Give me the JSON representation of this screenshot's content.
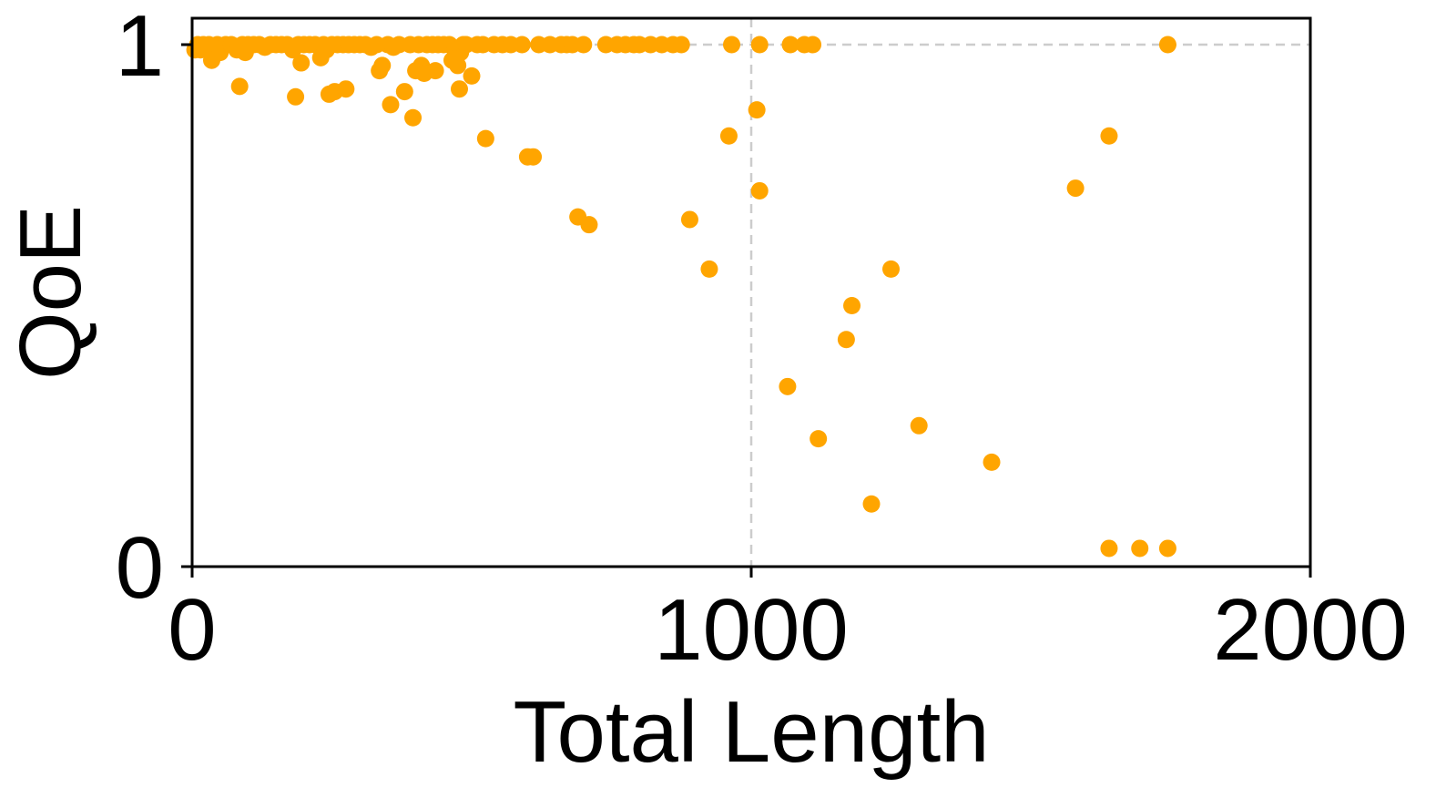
{
  "chart_data": {
    "type": "scatter",
    "title": "",
    "xlabel": "Total Length",
    "ylabel": "QoE",
    "xlim": [
      0,
      2000
    ],
    "ylim": [
      0,
      1.05
    ],
    "xticks": [
      0,
      1000,
      2000
    ],
    "xtick_labels": [
      "0",
      "1000",
      "2000"
    ],
    "yticks": [
      0,
      1
    ],
    "ytick_labels": [
      "0",
      "1"
    ],
    "grid": {
      "x": [
        1000
      ],
      "y": [
        1
      ],
      "style": "dashed"
    },
    "legend": "none",
    "colors": {
      "marker": "#ffa500",
      "grid": "#cccccc",
      "axis": "#000000"
    },
    "series": [
      {
        "points": [
          [
            5,
            0.99
          ],
          [
            10,
            1.0
          ],
          [
            15,
            0.99
          ],
          [
            20,
            1.0
          ],
          [
            25,
            0.995
          ],
          [
            30,
            1.0
          ],
          [
            35,
            0.97
          ],
          [
            40,
            0.99
          ],
          [
            45,
            1.0
          ],
          [
            50,
            0.985
          ],
          [
            60,
            1.0
          ],
          [
            70,
            1.0
          ],
          [
            80,
            0.99
          ],
          [
            85,
            0.92
          ],
          [
            90,
            1.0
          ],
          [
            95,
            0.985
          ],
          [
            100,
            1.0
          ],
          [
            110,
            1.0
          ],
          [
            120,
            1.0
          ],
          [
            130,
            0.995
          ],
          [
            140,
            1.0
          ],
          [
            150,
            1.0
          ],
          [
            160,
            1.0
          ],
          [
            170,
            1.0
          ],
          [
            180,
            0.99
          ],
          [
            185,
            0.9
          ],
          [
            190,
            1.0
          ],
          [
            195,
            0.965
          ],
          [
            200,
            1.0
          ],
          [
            210,
            1.0
          ],
          [
            220,
            1.0
          ],
          [
            230,
            0.975
          ],
          [
            235,
            1.0
          ],
          [
            240,
            0.99
          ],
          [
            245,
            0.905
          ],
          [
            250,
            1.0
          ],
          [
            255,
            0.91
          ],
          [
            260,
            1.0
          ],
          [
            270,
            1.0
          ],
          [
            275,
            0.915
          ],
          [
            280,
            1.0
          ],
          [
            290,
            1.0
          ],
          [
            300,
            1.0
          ],
          [
            310,
            1.0
          ],
          [
            320,
            0.995
          ],
          [
            330,
            1.0
          ],
          [
            335,
            0.95
          ],
          [
            340,
            0.96
          ],
          [
            350,
            1.0
          ],
          [
            355,
            0.885
          ],
          [
            360,
            0.995
          ],
          [
            370,
            1.0
          ],
          [
            380,
            0.91
          ],
          [
            390,
            1.0
          ],
          [
            395,
            0.86
          ],
          [
            400,
            0.95
          ],
          [
            405,
            1.0
          ],
          [
            410,
            0.96
          ],
          [
            415,
            0.945
          ],
          [
            420,
            1.0
          ],
          [
            430,
            1.0
          ],
          [
            435,
            0.95
          ],
          [
            440,
            1.0
          ],
          [
            450,
            1.0
          ],
          [
            460,
            1.0
          ],
          [
            465,
            0.97
          ],
          [
            470,
            0.99
          ],
          [
            475,
            0.96
          ],
          [
            478,
            0.915
          ],
          [
            480,
            0.985
          ],
          [
            485,
            1.0
          ],
          [
            490,
            1.0
          ],
          [
            500,
            0.94
          ],
          [
            510,
            1.0
          ],
          [
            520,
            1.0
          ],
          [
            525,
            0.82
          ],
          [
            540,
            1.0
          ],
          [
            555,
            1.0
          ],
          [
            570,
            1.0
          ],
          [
            590,
            1.0
          ],
          [
            600,
            0.785
          ],
          [
            610,
            0.785
          ],
          [
            620,
            1.0
          ],
          [
            640,
            1.0
          ],
          [
            660,
            1.0
          ],
          [
            670,
            1.0
          ],
          [
            680,
            1.0
          ],
          [
            690,
            0.67
          ],
          [
            700,
            1.0
          ],
          [
            710,
            0.655
          ],
          [
            740,
            1.0
          ],
          [
            760,
            1.0
          ],
          [
            775,
            1.0
          ],
          [
            790,
            1.0
          ],
          [
            800,
            1.0
          ],
          [
            820,
            1.0
          ],
          [
            840,
            1.0
          ],
          [
            860,
            1.0
          ],
          [
            875,
            1.0
          ],
          [
            890,
            0.665
          ],
          [
            925,
            0.57
          ],
          [
            965,
            1.0
          ],
          [
            960,
            0.825
          ],
          [
            1010,
            0.875
          ],
          [
            1015,
            0.72
          ],
          [
            1015,
            1.0
          ],
          [
            1065,
            0.345
          ],
          [
            1070,
            1.0
          ],
          [
            1095,
            1.0
          ],
          [
            1110,
            1.0
          ],
          [
            1120,
            0.245
          ],
          [
            1170,
            0.435
          ],
          [
            1180,
            0.5
          ],
          [
            1215,
            0.12
          ],
          [
            1250,
            0.57
          ],
          [
            1300,
            0.27
          ],
          [
            1430,
            0.2
          ],
          [
            1580,
            0.725
          ],
          [
            1640,
            0.825
          ],
          [
            1640,
            0.035
          ],
          [
            1695,
            0.035
          ],
          [
            1745,
            0.035
          ],
          [
            1745,
            1.0
          ]
        ]
      }
    ]
  }
}
